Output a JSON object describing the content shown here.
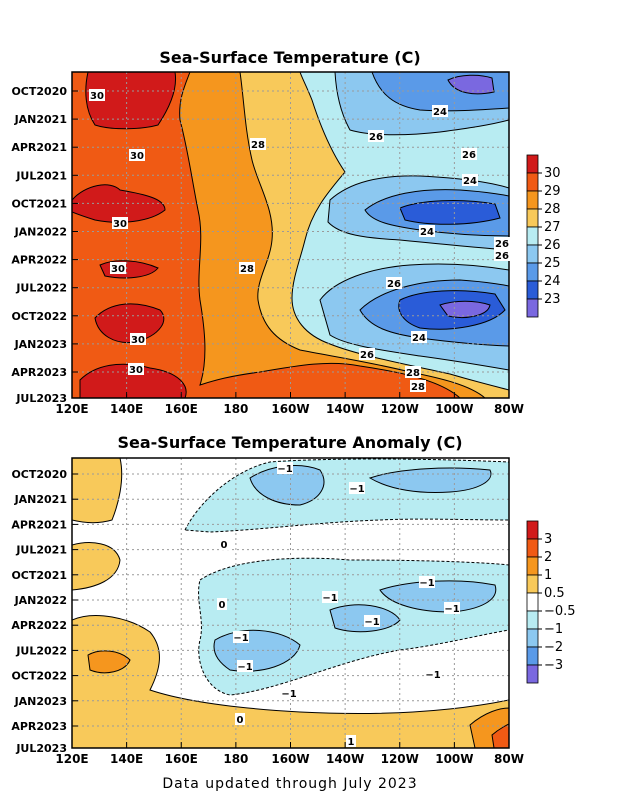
{
  "footer": "Data updated through July 2023",
  "chart_data": [
    {
      "type": "heatmap",
      "title": "Sea-Surface Temperature (C)",
      "x_ticks": [
        "120E",
        "140E",
        "160E",
        "180",
        "160W",
        "140W",
        "120W",
        "100W",
        "80W"
      ],
      "y_ticks": [
        "OCT2020",
        "JAN2021",
        "APR2021",
        "JUL2021",
        "OCT2021",
        "JAN2022",
        "APR2022",
        "JUL2022",
        "OCT2022",
        "JAN2023",
        "APR2023",
        "JUL2023"
      ],
      "colorbar": {
        "labels": [
          "30",
          "29",
          "28",
          "27",
          "26",
          "25",
          "24",
          "23"
        ],
        "colors": [
          "#d11a1a",
          "#f05a14",
          "#f5961e",
          "#f8c95a",
          "#b8ecf2",
          "#8cc8f0",
          "#5a9ae8",
          "#2a5cd8",
          "#7a68e0"
        ]
      },
      "contour_labels": [
        "30",
        "30",
        "30",
        "30",
        "30",
        "30",
        "28",
        "28",
        "28",
        "28",
        "26",
        "26",
        "26",
        "26",
        "26",
        "26",
        "24",
        "24",
        "24",
        "24"
      ],
      "grid": true
    },
    {
      "type": "heatmap",
      "title": "Sea-Surface Temperature Anomaly (C)",
      "x_ticks": [
        "120E",
        "140E",
        "160E",
        "180",
        "160W",
        "140W",
        "120W",
        "100W",
        "80W"
      ],
      "y_ticks": [
        "OCT2020",
        "JAN2021",
        "APR2021",
        "JUL2021",
        "OCT2021",
        "JAN2022",
        "APR2022",
        "JUL2022",
        "OCT2022",
        "JAN2023",
        "APR2023",
        "JUL2023"
      ],
      "colorbar": {
        "labels": [
          "3",
          "2",
          "1",
          "0.5",
          "−0.5",
          "−1",
          "−2",
          "−3"
        ],
        "colors": [
          "#d11a1a",
          "#f05a14",
          "#f5961e",
          "#f8c95a",
          "#ffffff",
          "#b8ecf2",
          "#8cc8f0",
          "#5a9ae8",
          "#7a68e0"
        ]
      },
      "contour_labels": [
        "−1",
        "−1",
        "−1",
        "−1",
        "−1",
        "−1",
        "−1",
        "−1",
        "−1",
        "−1",
        "0",
        "0",
        "0",
        "1"
      ],
      "grid": true
    }
  ]
}
